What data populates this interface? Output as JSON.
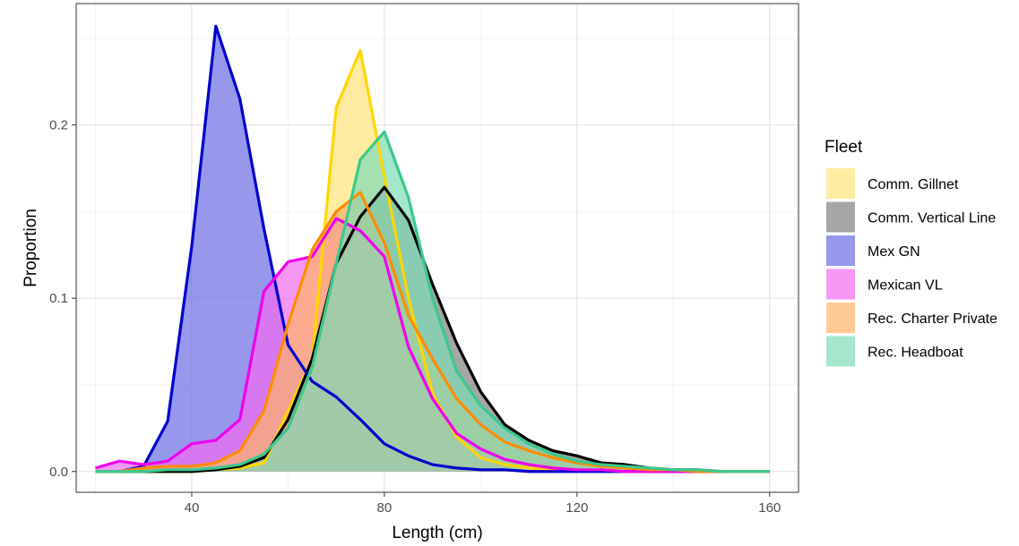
{
  "chart_data": {
    "type": "area",
    "xlabel": "Length (cm)",
    "ylabel": "Proportion",
    "xlim": [
      16,
      166
    ],
    "ylim": [
      -0.012,
      0.27
    ],
    "x_ticks": [
      40,
      80,
      120,
      160
    ],
    "x_tick_labels": [
      "40",
      "80",
      "120",
      "160"
    ],
    "y_ticks": [
      0.0,
      0.1,
      0.2
    ],
    "y_tick_labels": [
      "0.0",
      "0.1",
      "0.2"
    ],
    "grid": true,
    "legend": {
      "title": "Fleet",
      "position": "right"
    },
    "x": [
      20,
      25,
      30,
      35,
      40,
      45,
      50,
      55,
      60,
      65,
      70,
      75,
      80,
      85,
      90,
      95,
      100,
      105,
      110,
      115,
      120,
      125,
      130,
      135,
      140,
      145,
      150,
      155,
      160
    ],
    "series": [
      {
        "name": "Comm. Gillnet",
        "line_color": "#FFD700",
        "fill_color": "#FFE47A",
        "values": [
          0.0,
          0.0,
          0.0,
          0.0,
          0.0,
          0.001,
          0.002,
          0.005,
          0.035,
          0.065,
          0.21,
          0.243,
          0.17,
          0.1,
          0.045,
          0.02,
          0.008,
          0.004,
          0.002,
          0.001,
          0.001,
          0.0,
          0.0,
          0.0,
          0.0,
          0.0,
          0.0,
          0.0,
          0.0
        ]
      },
      {
        "name": "Comm. Vertical Line",
        "line_color": "#000000",
        "fill_color": "#808080",
        "values": [
          0.0,
          0.0,
          0.0,
          0.0,
          0.0,
          0.001,
          0.003,
          0.008,
          0.03,
          0.065,
          0.12,
          0.147,
          0.164,
          0.145,
          0.108,
          0.074,
          0.046,
          0.027,
          0.018,
          0.012,
          0.009,
          0.005,
          0.004,
          0.002,
          0.001,
          0.001,
          0.0,
          0.0,
          0.0
        ]
      },
      {
        "name": "Mex GN",
        "line_color": "#0000CC",
        "fill_color": "#6B6BE3",
        "values": [
          0.0,
          0.0,
          0.003,
          0.029,
          0.13,
          0.257,
          0.215,
          0.14,
          0.073,
          0.052,
          0.043,
          0.03,
          0.016,
          0.009,
          0.004,
          0.002,
          0.001,
          0.001,
          0.0,
          0.0,
          0.0,
          0.0,
          0.0,
          0.0,
          0.0,
          0.0,
          0.0,
          0.0,
          0.0
        ]
      },
      {
        "name": "Mexican VL",
        "line_color": "#EE00EE",
        "fill_color": "#F26BF2",
        "values": [
          0.002,
          0.006,
          0.004,
          0.006,
          0.016,
          0.018,
          0.03,
          0.104,
          0.121,
          0.124,
          0.146,
          0.139,
          0.124,
          0.072,
          0.042,
          0.022,
          0.013,
          0.007,
          0.004,
          0.002,
          0.001,
          0.001,
          0.0,
          0.0,
          0.0,
          0.0,
          0.0,
          0.0,
          0.0
        ]
      },
      {
        "name": "Rec. Charter Private",
        "line_color": "#FF8C00",
        "fill_color": "#FFB366",
        "values": [
          0.0,
          0.0,
          0.002,
          0.003,
          0.003,
          0.005,
          0.012,
          0.035,
          0.085,
          0.128,
          0.15,
          0.161,
          0.132,
          0.09,
          0.065,
          0.042,
          0.027,
          0.017,
          0.012,
          0.008,
          0.005,
          0.003,
          0.002,
          0.001,
          0.001,
          0.0,
          0.0,
          0.0,
          0.0
        ]
      },
      {
        "name": "Rec. Headboat",
        "line_color": "#3CC88C",
        "fill_color": "#7FDDB6",
        "values": [
          0.0,
          0.0,
          0.0,
          0.001,
          0.001,
          0.002,
          0.004,
          0.01,
          0.025,
          0.06,
          0.12,
          0.18,
          0.196,
          0.158,
          0.1,
          0.058,
          0.038,
          0.025,
          0.016,
          0.01,
          0.006,
          0.004,
          0.003,
          0.002,
          0.001,
          0.001,
          0.0,
          0.0,
          0.0
        ]
      }
    ]
  }
}
